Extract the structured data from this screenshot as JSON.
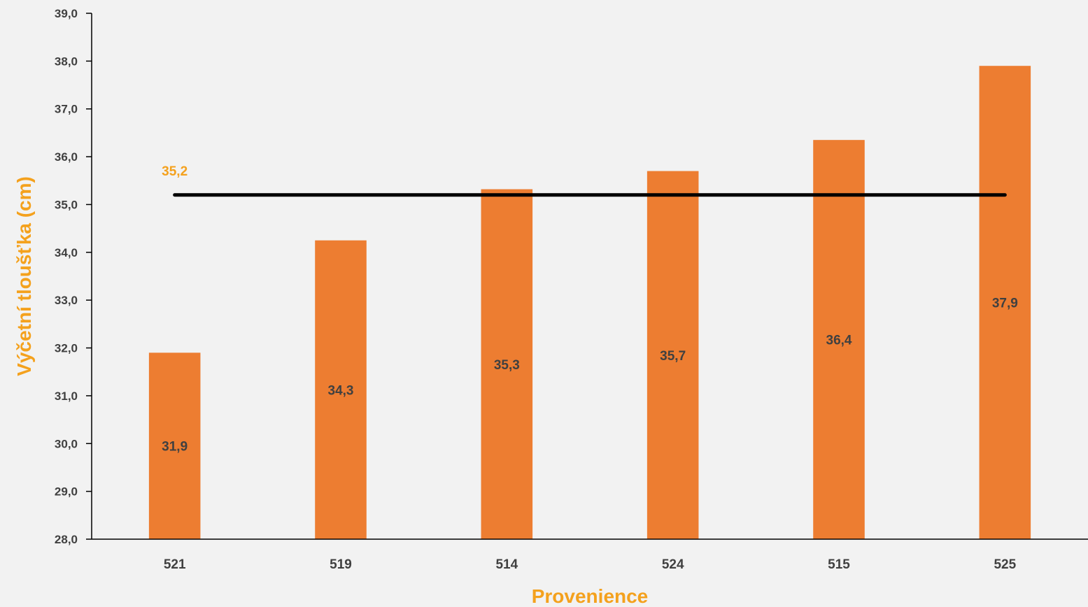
{
  "chart_data": {
    "type": "bar",
    "categories": [
      "521",
      "519",
      "514",
      "524",
      "515",
      "525"
    ],
    "values": [
      31.9,
      34.25,
      35.32,
      35.7,
      36.35,
      37.9
    ],
    "value_labels": [
      "31,9",
      "34,3",
      "35,3",
      "35,7",
      "36,4",
      "37,9"
    ],
    "ylim": [
      28.0,
      39.0
    ],
    "y_ticks": [
      "28,0",
      "29,0",
      "30,0",
      "31,0",
      "32,0",
      "33,0",
      "34,0",
      "35,0",
      "36,0",
      "37,0",
      "38,0",
      "39,0"
    ],
    "xlabel": "Provenience",
    "ylabel": "Výčetní tloušťka (cm)",
    "mean_line": {
      "value": 35.2,
      "label": "35,2"
    },
    "grid": false,
    "legend": "none",
    "colors": {
      "bar": "#ed7d31",
      "mean_line": "#000000",
      "axis_title": "#f4a11d",
      "mean_label": "#f4a11d",
      "tick_text": "#404040",
      "background": "#f2f2f2"
    }
  }
}
